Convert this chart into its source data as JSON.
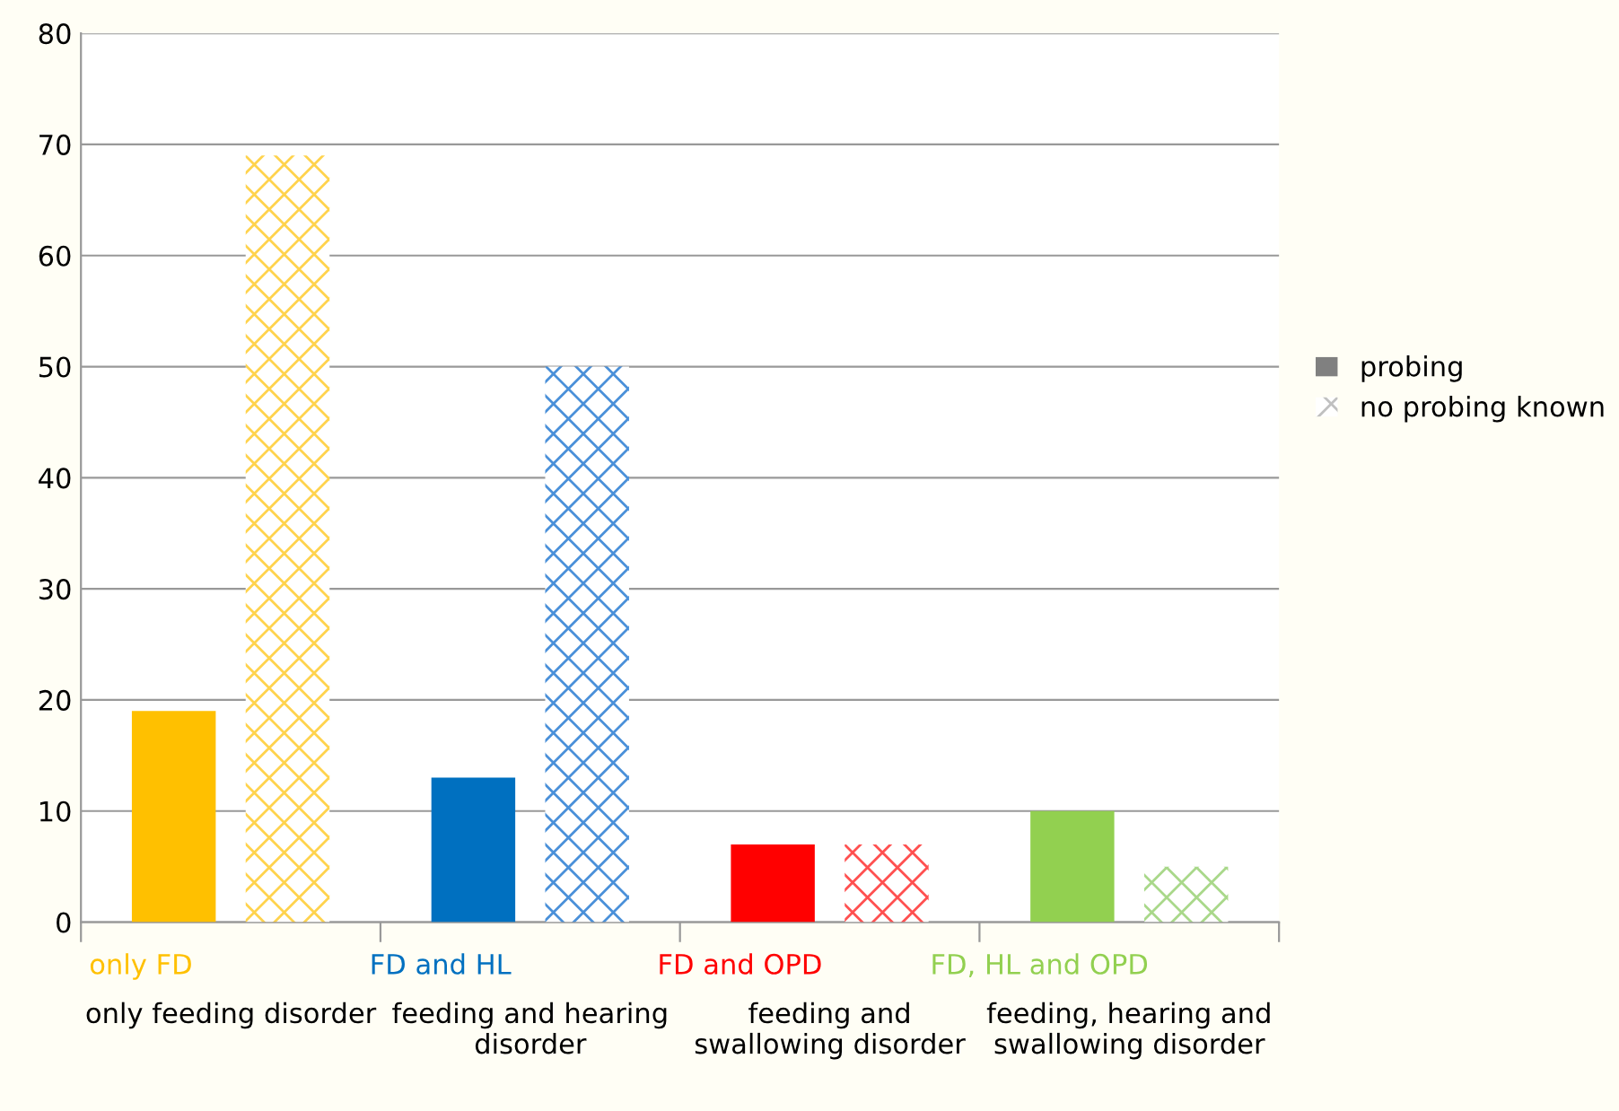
{
  "chart_data": {
    "type": "bar",
    "categories": [
      "only FD",
      "FD and HL",
      "FD and OPD",
      "FD, HL and OPD"
    ],
    "annotations": [
      "only feeding disorder",
      "feeding and hearing\ndisorder",
      "feeding and\nswallowing disorder",
      "feeding, hearing and\nswallowing disorder"
    ],
    "series": [
      {
        "name": "probing",
        "color": "#808080",
        "colors": [
          "#ffc000",
          "#0070c0",
          "#ff0000",
          "#92d050"
        ],
        "values": [
          19,
          13,
          7,
          10
        ]
      },
      {
        "name": "no probing known",
        "color": "#c0c0c0",
        "colors": [
          "#ffd34d",
          "#4a90d9",
          "#ff5050",
          "#a9d88a"
        ],
        "values": [
          69,
          50,
          7,
          5
        ]
      }
    ],
    "ylim": [
      0,
      80
    ],
    "yticks": [
      0,
      10,
      20,
      30,
      40,
      50,
      60,
      70,
      80
    ],
    "grid": "y",
    "legend": "right"
  }
}
